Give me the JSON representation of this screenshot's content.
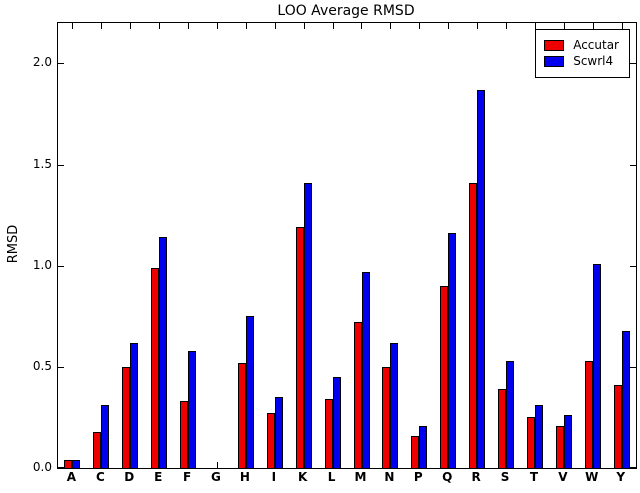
{
  "title": "LOO Average RMSD",
  "ylabel": "RMSD",
  "chart_data": {
    "type": "bar",
    "title": "LOO Average RMSD",
    "xlabel": "",
    "ylabel": "RMSD",
    "ylim": [
      0,
      2.2
    ],
    "yticks": [
      0.0,
      0.5,
      1.0,
      1.5,
      2.0
    ],
    "grid": false,
    "legend_position": "upper right",
    "categories": [
      "A",
      "C",
      "D",
      "E",
      "F",
      "G",
      "H",
      "I",
      "K",
      "L",
      "M",
      "N",
      "P",
      "Q",
      "R",
      "S",
      "T",
      "V",
      "W",
      "Y"
    ],
    "series": [
      {
        "name": "Accutar",
        "color": "#ee0000",
        "values": [
          0.04,
          0.18,
          0.5,
          0.99,
          0.33,
          0.0,
          0.52,
          0.27,
          1.19,
          0.34,
          0.72,
          0.5,
          0.16,
          0.9,
          1.41,
          0.39,
          0.25,
          0.21,
          0.53,
          0.41
        ]
      },
      {
        "name": "Scwrl4",
        "color": "#0000ee",
        "values": [
          0.04,
          0.31,
          0.62,
          1.14,
          0.58,
          0.0,
          0.75,
          0.35,
          1.41,
          0.45,
          0.97,
          0.62,
          0.21,
          1.16,
          1.87,
          0.53,
          0.31,
          0.26,
          1.01,
          0.68
        ]
      }
    ]
  }
}
